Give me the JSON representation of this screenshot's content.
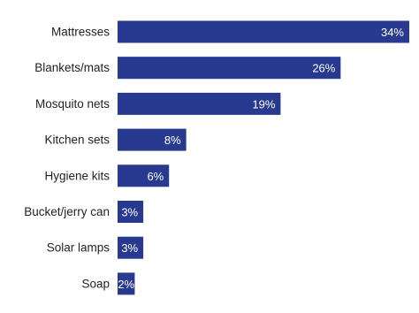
{
  "chart_data": {
    "type": "bar",
    "orientation": "horizontal",
    "title": "",
    "xlabel": "",
    "ylabel": "",
    "categories": [
      "Mattresses",
      "Blankets/mats",
      "Mosquito nets",
      "Kitchen sets",
      "Hygiene kits",
      "Bucket/jerry can",
      "Solar lamps",
      "Soap"
    ],
    "values": [
      34,
      26,
      19,
      8,
      6,
      3,
      3,
      2
    ],
    "value_labels": [
      "34%",
      "26%",
      "19%",
      "8%",
      "6%",
      "3%",
      "3%",
      "2%"
    ],
    "unit": "%",
    "xlim": [
      0,
      34
    ],
    "grid": false,
    "legend": "none",
    "bar_color": "#283a8f",
    "label_inside_color": "#ffffff",
    "label_outside_color": "#283a8f"
  }
}
